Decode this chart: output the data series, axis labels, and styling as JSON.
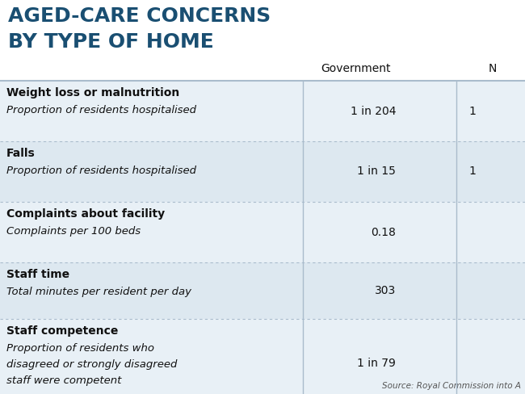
{
  "title_line1": "AGED-CARE CONCERNS",
  "title_line2": "BY TYPE OF HOME",
  "title_color": "#1a4f72",
  "title_fontsize": 18,
  "col_header": "Government",
  "col_header2": "N",
  "col_header_fontsize": 10,
  "source_text": "Source: Royal Commission into A",
  "white_bg": "#ffffff",
  "table_bg": "#dde8f0",
  "row_bg_light": "#dde8f0",
  "row_bg_lighter": "#e8f0f6",
  "border_color": "#aabccc",
  "text_dark": "#111111",
  "rows": [
    {
      "category": "Weight loss or malnutrition",
      "subcategory": "Proportion of residents hospitalised",
      "gov_value": "1 in 204",
      "non_gov_value": "1",
      "multiline": false
    },
    {
      "category": "Falls",
      "subcategory": "Proportion of residents hospitalised",
      "gov_value": "1 in 15",
      "non_gov_value": "1",
      "multiline": false
    },
    {
      "category": "Complaints about facility",
      "subcategory": "Complaints per 100 beds",
      "gov_value": "0.18",
      "non_gov_value": "",
      "multiline": false
    },
    {
      "category": "Staff time",
      "subcategory": "Total minutes per resident per day",
      "gov_value": "303",
      "non_gov_value": "",
      "multiline": false
    },
    {
      "category": "Staff competence",
      "subcategory": "Proportion of residents who\ndisagreed or strongly disagreed\nstaff were competent",
      "gov_value": "1 in 79",
      "non_gov_value": "",
      "multiline": true
    }
  ]
}
